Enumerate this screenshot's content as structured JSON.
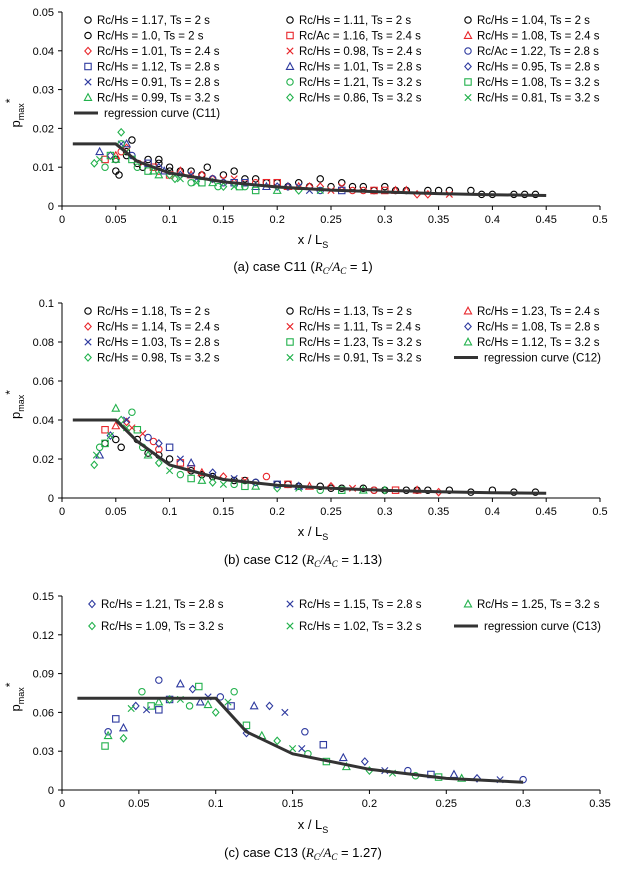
{
  "chart_data": [
    {
      "type": "scatter",
      "caption": {
        "prefix": "(a) case C11 (",
        "ratio": "RC/AC",
        "suffix": " = 1)"
      },
      "xlabel": "x / LS",
      "ylabel": "pmax*",
      "xlim": [
        0,
        0.5
      ],
      "ylim": [
        0,
        0.05
      ],
      "xticks": [
        "0",
        "0.05",
        "0.1",
        "0.15",
        "0.2",
        "0.25",
        "0.3",
        "0.35",
        "0.4",
        "0.45",
        "0.5"
      ],
      "yticks": [
        "0",
        "0.01",
        "0.02",
        "0.03",
        "0.04",
        "0.05"
      ],
      "legend": [
        {
          "label": "Rc/Hs = 1.17, Ts = 2 s",
          "marker": "circle",
          "color": "#000000"
        },
        {
          "label": "Rc/Hs = 1.11, Ts = 2 s",
          "marker": "circle",
          "color": "#000000"
        },
        {
          "label": "Rc/Hs = 1.04, Ts = 2 s",
          "marker": "circle",
          "color": "#000000"
        },
        {
          "label": "Rc/Hs = 1.0, Ts = 2 s",
          "marker": "circle",
          "color": "#000000"
        },
        {
          "label": "Rc/Ac = 1.16, Ts = 2.4 s",
          "marker": "square",
          "color": "#e8262b"
        },
        {
          "label": "Rc/Hs = 1.08, Ts = 2.4 s",
          "marker": "triangle",
          "color": "#e8262b"
        },
        {
          "label": "Rc/Hs = 1.01, Ts = 2.4 s",
          "marker": "diamond",
          "color": "#e8262b"
        },
        {
          "label": "Rc/Hs = 0.98, Ts = 2.4 s",
          "marker": "x",
          "color": "#e8262b"
        },
        {
          "label": "Rc/Ac = 1.22, Ts = 2.8 s",
          "marker": "circle",
          "color": "#2e3a9f"
        },
        {
          "label": "Rc/Hs = 1.12, Ts = 2.8 s",
          "marker": "square",
          "color": "#2e3a9f"
        },
        {
          "label": "Rc/Hs = 1.01, Ts = 2.8 s",
          "marker": "triangle",
          "color": "#2e3a9f"
        },
        {
          "label": "Rc/Hs = 0.95, Ts = 2.8 s",
          "marker": "diamond",
          "color": "#2e3a9f"
        },
        {
          "label": "Rc/Hs = 0.91, Ts = 2.8 s",
          "marker": "x",
          "color": "#2e3a9f"
        },
        {
          "label": "Rc/Hs = 1.21, Ts = 3.2 s",
          "marker": "circle",
          "color": "#22b14c"
        },
        {
          "label": "Rc/Hs = 1.08, Ts = 3.2 s",
          "marker": "square",
          "color": "#22b14c"
        },
        {
          "label": "Rc/Hs = 0.99, Ts = 3.2 s",
          "marker": "triangle",
          "color": "#22b14c"
        },
        {
          "label": "Rc/Hs = 0.86, Ts = 3.2 s",
          "marker": "diamond",
          "color": "#22b14c"
        },
        {
          "label": "Rc/Hs = 0.81, Ts = 3.2 s",
          "marker": "x",
          "color": "#22b14c"
        },
        {
          "label": "regression curve (C11)",
          "marker": "line",
          "color": "#333333"
        }
      ],
      "regression": {
        "x": [
          0.01,
          0.05,
          0.07,
          0.1,
          0.15,
          0.2,
          0.25,
          0.3,
          0.35,
          0.4,
          0.45
        ],
        "y": [
          0.016,
          0.016,
          0.0115,
          0.0085,
          0.0062,
          0.0049,
          0.0041,
          0.0036,
          0.0032,
          0.0029,
          0.0027
        ]
      },
      "points": [
        {
          "color": "#000000",
          "marker": "circle",
          "x": [
            0.05,
            0.05,
            0.053,
            0.06,
            0.065,
            0.075,
            0.08,
            0.09,
            0.1,
            0.11,
            0.12,
            0.135,
            0.15,
            0.16,
            0.18,
            0.2,
            0.22,
            0.24,
            0.25,
            0.26,
            0.28,
            0.3,
            0.32,
            0.34,
            0.36,
            0.38,
            0.4,
            0.42,
            0.44,
            0.06,
            0.09,
            0.13,
            0.17,
            0.19,
            0.21,
            0.23,
            0.27,
            0.29,
            0.31,
            0.35,
            0.39,
            0.43,
            0.07,
            0.1,
            0.14
          ],
          "y": [
            0.009,
            0.012,
            0.008,
            0.014,
            0.017,
            0.01,
            0.012,
            0.011,
            0.01,
            0.009,
            0.009,
            0.01,
            0.008,
            0.009,
            0.007,
            0.006,
            0.006,
            0.007,
            0.005,
            0.006,
            0.005,
            0.005,
            0.004,
            0.004,
            0.004,
            0.004,
            0.003,
            0.003,
            0.003,
            0.013,
            0.012,
            0.008,
            0.007,
            0.006,
            0.005,
            0.005,
            0.005,
            0.004,
            0.004,
            0.004,
            0.003,
            0.003,
            0.011,
            0.009,
            0.007
          ]
        },
        {
          "color": "#e8262b",
          "marker": "mixed",
          "x": [
            0.04,
            0.05,
            0.06,
            0.075,
            0.09,
            0.1,
            0.12,
            0.14,
            0.16,
            0.18,
            0.2,
            0.22,
            0.24,
            0.26,
            0.28,
            0.3,
            0.32,
            0.34,
            0.36,
            0.055,
            0.085,
            0.11,
            0.13,
            0.15,
            0.17,
            0.19,
            0.21,
            0.23,
            0.25,
            0.27,
            0.29,
            0.31,
            0.33
          ],
          "y": [
            0.012,
            0.013,
            0.015,
            0.011,
            0.009,
            0.008,
            0.008,
            0.007,
            0.007,
            0.006,
            0.006,
            0.005,
            0.005,
            0.005,
            0.004,
            0.004,
            0.004,
            0.003,
            0.003,
            0.014,
            0.01,
            0.009,
            0.008,
            0.007,
            0.006,
            0.006,
            0.005,
            0.005,
            0.004,
            0.004,
            0.004,
            0.004,
            0.003
          ]
        },
        {
          "color": "#2e3a9f",
          "marker": "mixed",
          "x": [
            0.035,
            0.045,
            0.055,
            0.065,
            0.08,
            0.095,
            0.11,
            0.125,
            0.14,
            0.16,
            0.18,
            0.2,
            0.22,
            0.24,
            0.26,
            0.06,
            0.09,
            0.12,
            0.15,
            0.17,
            0.19,
            0.21,
            0.23
          ],
          "y": [
            0.014,
            0.013,
            0.016,
            0.013,
            0.011,
            0.009,
            0.008,
            0.007,
            0.007,
            0.006,
            0.005,
            0.005,
            0.005,
            0.004,
            0.004,
            0.016,
            0.01,
            0.008,
            0.006,
            0.006,
            0.005,
            0.005,
            0.004
          ]
        },
        {
          "color": "#22b14c",
          "marker": "mixed",
          "x": [
            0.03,
            0.035,
            0.04,
            0.045,
            0.05,
            0.055,
            0.06,
            0.07,
            0.08,
            0.09,
            0.1,
            0.11,
            0.12,
            0.13,
            0.14,
            0.15,
            0.16,
            0.17,
            0.18,
            0.2,
            0.22,
            0.24,
            0.055,
            0.065,
            0.085,
            0.105,
            0.125,
            0.145,
            0.165
          ],
          "y": [
            0.011,
            0.012,
            0.01,
            0.013,
            0.012,
            0.019,
            0.014,
            0.01,
            0.009,
            0.008,
            0.008,
            0.007,
            0.006,
            0.006,
            0.006,
            0.005,
            0.005,
            0.005,
            0.004,
            0.004,
            0.004,
            0.004,
            0.016,
            0.012,
            0.009,
            0.007,
            0.006,
            0.005,
            0.005
          ]
        }
      ]
    },
    {
      "type": "scatter",
      "caption": {
        "prefix": "(b) case C12 (",
        "ratio": "RC/AC",
        "suffix": " = 1.13)"
      },
      "xlabel": "x / LS",
      "ylabel": "pmax*",
      "xlim": [
        0,
        0.5
      ],
      "ylim": [
        0,
        0.1
      ],
      "xticks": [
        "0",
        "0.05",
        "0.1",
        "0.15",
        "0.2",
        "0.25",
        "0.3",
        "0.35",
        "0.4",
        "0.45",
        "0.5"
      ],
      "yticks": [
        "0",
        "0.02",
        "0.04",
        "0.06",
        "0.08",
        "0.1"
      ],
      "legend": [
        {
          "label": "Rc/Hs = 1.18, Ts = 2 s",
          "marker": "circle",
          "color": "#000000"
        },
        {
          "label": "Rc/Hs = 1.13, Ts = 2 s",
          "marker": "circle",
          "color": "#000000"
        },
        {
          "label": "Rc/Hs = 1.23, Ts = 2.4 s",
          "marker": "triangle",
          "color": "#e8262b"
        },
        {
          "label": "Rc/Hs = 1.14, Ts = 2.4 s",
          "marker": "diamond",
          "color": "#e8262b"
        },
        {
          "label": "Rc/Hs = 1.11, Ts = 2.4 s",
          "marker": "x",
          "color": "#e8262b"
        },
        {
          "label": "Rc/Hs = 1.08, Ts = 2.8 s",
          "marker": "diamond",
          "color": "#2e3a9f"
        },
        {
          "label": "Rc/Hs = 1.03, Ts = 2.8 s",
          "marker": "x",
          "color": "#2e3a9f"
        },
        {
          "label": "Rc/Hs = 1.23, Ts = 3.2 s",
          "marker": "square",
          "color": "#22b14c"
        },
        {
          "label": "Rc/Hs = 1.12, Ts = 3.2 s",
          "marker": "triangle",
          "color": "#22b14c"
        },
        {
          "label": "Rc/Hs = 0.98, Ts = 3.2 s",
          "marker": "diamond",
          "color": "#22b14c"
        },
        {
          "label": "Rc/Hs = 0.91, Ts = 3.2 s",
          "marker": "x",
          "color": "#22b14c"
        },
        {
          "label": "regression curve (C12)",
          "marker": "line",
          "color": "#333333"
        }
      ],
      "regression": {
        "x": [
          0.01,
          0.05,
          0.07,
          0.1,
          0.15,
          0.2,
          0.25,
          0.3,
          0.35,
          0.4,
          0.45
        ],
        "y": [
          0.04,
          0.04,
          0.029,
          0.017,
          0.0095,
          0.0065,
          0.005,
          0.0039,
          0.0032,
          0.0027,
          0.0024
        ]
      },
      "points": [
        {
          "color": "#000000",
          "marker": "circle",
          "x": [
            0.04,
            0.05,
            0.055,
            0.07,
            0.08,
            0.1,
            0.12,
            0.14,
            0.16,
            0.18,
            0.2,
            0.22,
            0.24,
            0.26,
            0.28,
            0.3,
            0.32,
            0.34,
            0.36,
            0.38,
            0.4,
            0.42,
            0.44,
            0.09,
            0.13,
            0.17,
            0.21,
            0.25,
            0.29,
            0.33
          ],
          "y": [
            0.028,
            0.03,
            0.026,
            0.03,
            0.023,
            0.02,
            0.014,
            0.011,
            0.009,
            0.008,
            0.007,
            0.006,
            0.006,
            0.005,
            0.005,
            0.004,
            0.004,
            0.004,
            0.004,
            0.003,
            0.004,
            0.003,
            0.003,
            0.022,
            0.012,
            0.009,
            0.007,
            0.005,
            0.004,
            0.004
          ]
        },
        {
          "color": "#e8262b",
          "marker": "mixed",
          "x": [
            0.04,
            0.05,
            0.06,
            0.075,
            0.09,
            0.11,
            0.13,
            0.15,
            0.17,
            0.19,
            0.21,
            0.23,
            0.25,
            0.27,
            0.29,
            0.31,
            0.33,
            0.35,
            0.065,
            0.085,
            0.12
          ],
          "y": [
            0.035,
            0.037,
            0.039,
            0.033,
            0.025,
            0.018,
            0.013,
            0.011,
            0.009,
            0.011,
            0.007,
            0.006,
            0.006,
            0.005,
            0.004,
            0.004,
            0.004,
            0.003,
            0.036,
            0.029,
            0.015
          ]
        },
        {
          "color": "#2e3a9f",
          "marker": "mixed",
          "x": [
            0.035,
            0.045,
            0.06,
            0.08,
            0.1,
            0.12,
            0.14,
            0.16,
            0.18,
            0.2,
            0.22,
            0.09,
            0.11
          ],
          "y": [
            0.022,
            0.032,
            0.04,
            0.031,
            0.026,
            0.018,
            0.013,
            0.01,
            0.008,
            0.007,
            0.006,
            0.028,
            0.02
          ]
        },
        {
          "color": "#22b14c",
          "marker": "mixed",
          "x": [
            0.03,
            0.032,
            0.035,
            0.04,
            0.05,
            0.055,
            0.06,
            0.065,
            0.07,
            0.08,
            0.09,
            0.1,
            0.11,
            0.12,
            0.13,
            0.14,
            0.15,
            0.16,
            0.17,
            0.18,
            0.2,
            0.22,
            0.24,
            0.26,
            0.28,
            0.3,
            0.045,
            0.075
          ],
          "y": [
            0.017,
            0.022,
            0.026,
            0.028,
            0.046,
            0.04,
            0.036,
            0.044,
            0.035,
            0.022,
            0.018,
            0.014,
            0.012,
            0.01,
            0.009,
            0.008,
            0.007,
            0.007,
            0.006,
            0.006,
            0.005,
            0.005,
            0.004,
            0.004,
            0.004,
            0.004,
            0.032,
            0.026
          ]
        }
      ]
    },
    {
      "type": "scatter",
      "caption": {
        "prefix": "(c) case C13 (",
        "ratio": "RC/AC",
        "suffix": " = 1.27)"
      },
      "xlabel": "x / LS",
      "ylabel": "pmax*",
      "xlim": [
        0,
        0.35
      ],
      "ylim": [
        0,
        0.15
      ],
      "xticks": [
        "0",
        "0.05",
        "0.1",
        "0.15",
        "0.2",
        "0.25",
        "0.3",
        "0.35"
      ],
      "yticks": [
        "0",
        "0.03",
        "0.06",
        "0.09",
        "0.12",
        "0.15"
      ],
      "legend": [
        {
          "label": "Rc/Hs = 1.21, Ts = 2.8 s",
          "marker": "diamond",
          "color": "#2e3a9f"
        },
        {
          "label": "Rc/Hs = 1.15, Ts = 2.8 s",
          "marker": "x",
          "color": "#2e3a9f"
        },
        {
          "label": "Rc/Hs = 1.25, Ts = 3.2 s",
          "marker": "triangle",
          "color": "#22b14c"
        },
        {
          "label": "Rc/Hs = 1.09, Ts = 3.2 s",
          "marker": "diamond",
          "color": "#22b14c"
        },
        {
          "label": "Rc/Hs = 1.02, Ts = 3.2 s",
          "marker": "x",
          "color": "#22b14c"
        },
        {
          "label": "regression curve (C13)",
          "marker": "line",
          "color": "#333333"
        }
      ],
      "regression": {
        "x": [
          0.01,
          0.1,
          0.12,
          0.15,
          0.2,
          0.25,
          0.3
        ],
        "y": [
          0.071,
          0.071,
          0.045,
          0.028,
          0.016,
          0.009,
          0.006
        ]
      },
      "points": [
        {
          "color": "#2e3a9f",
          "marker": "mixed",
          "x": [
            0.03,
            0.035,
            0.04,
            0.048,
            0.055,
            0.063,
            0.07,
            0.077,
            0.085,
            0.095,
            0.103,
            0.11,
            0.125,
            0.135,
            0.145,
            0.158,
            0.17,
            0.183,
            0.197,
            0.21,
            0.225,
            0.24,
            0.255,
            0.27,
            0.285,
            0.3,
            0.063,
            0.09,
            0.12,
            0.156
          ],
          "y": [
            0.045,
            0.055,
            0.048,
            0.065,
            0.062,
            0.085,
            0.07,
            0.082,
            0.078,
            0.072,
            0.072,
            0.065,
            0.065,
            0.065,
            0.06,
            0.045,
            0.035,
            0.025,
            0.022,
            0.015,
            0.015,
            0.012,
            0.012,
            0.009,
            0.008,
            0.008,
            0.062,
            0.068,
            0.044,
            0.032
          ]
        },
        {
          "color": "#22b14c",
          "marker": "mixed",
          "x": [
            0.028,
            0.03,
            0.04,
            0.045,
            0.052,
            0.058,
            0.063,
            0.07,
            0.077,
            0.083,
            0.089,
            0.095,
            0.1,
            0.108,
            0.112,
            0.12,
            0.13,
            0.14,
            0.15,
            0.16,
            0.172,
            0.185,
            0.2,
            0.215,
            0.23,
            0.245,
            0.26
          ],
          "y": [
            0.034,
            0.042,
            0.04,
            0.063,
            0.076,
            0.065,
            0.068,
            0.07,
            0.07,
            0.065,
            0.08,
            0.066,
            0.06,
            0.068,
            0.076,
            0.05,
            0.042,
            0.038,
            0.032,
            0.028,
            0.022,
            0.018,
            0.015,
            0.013,
            0.011,
            0.01,
            0.009
          ]
        }
      ]
    }
  ]
}
